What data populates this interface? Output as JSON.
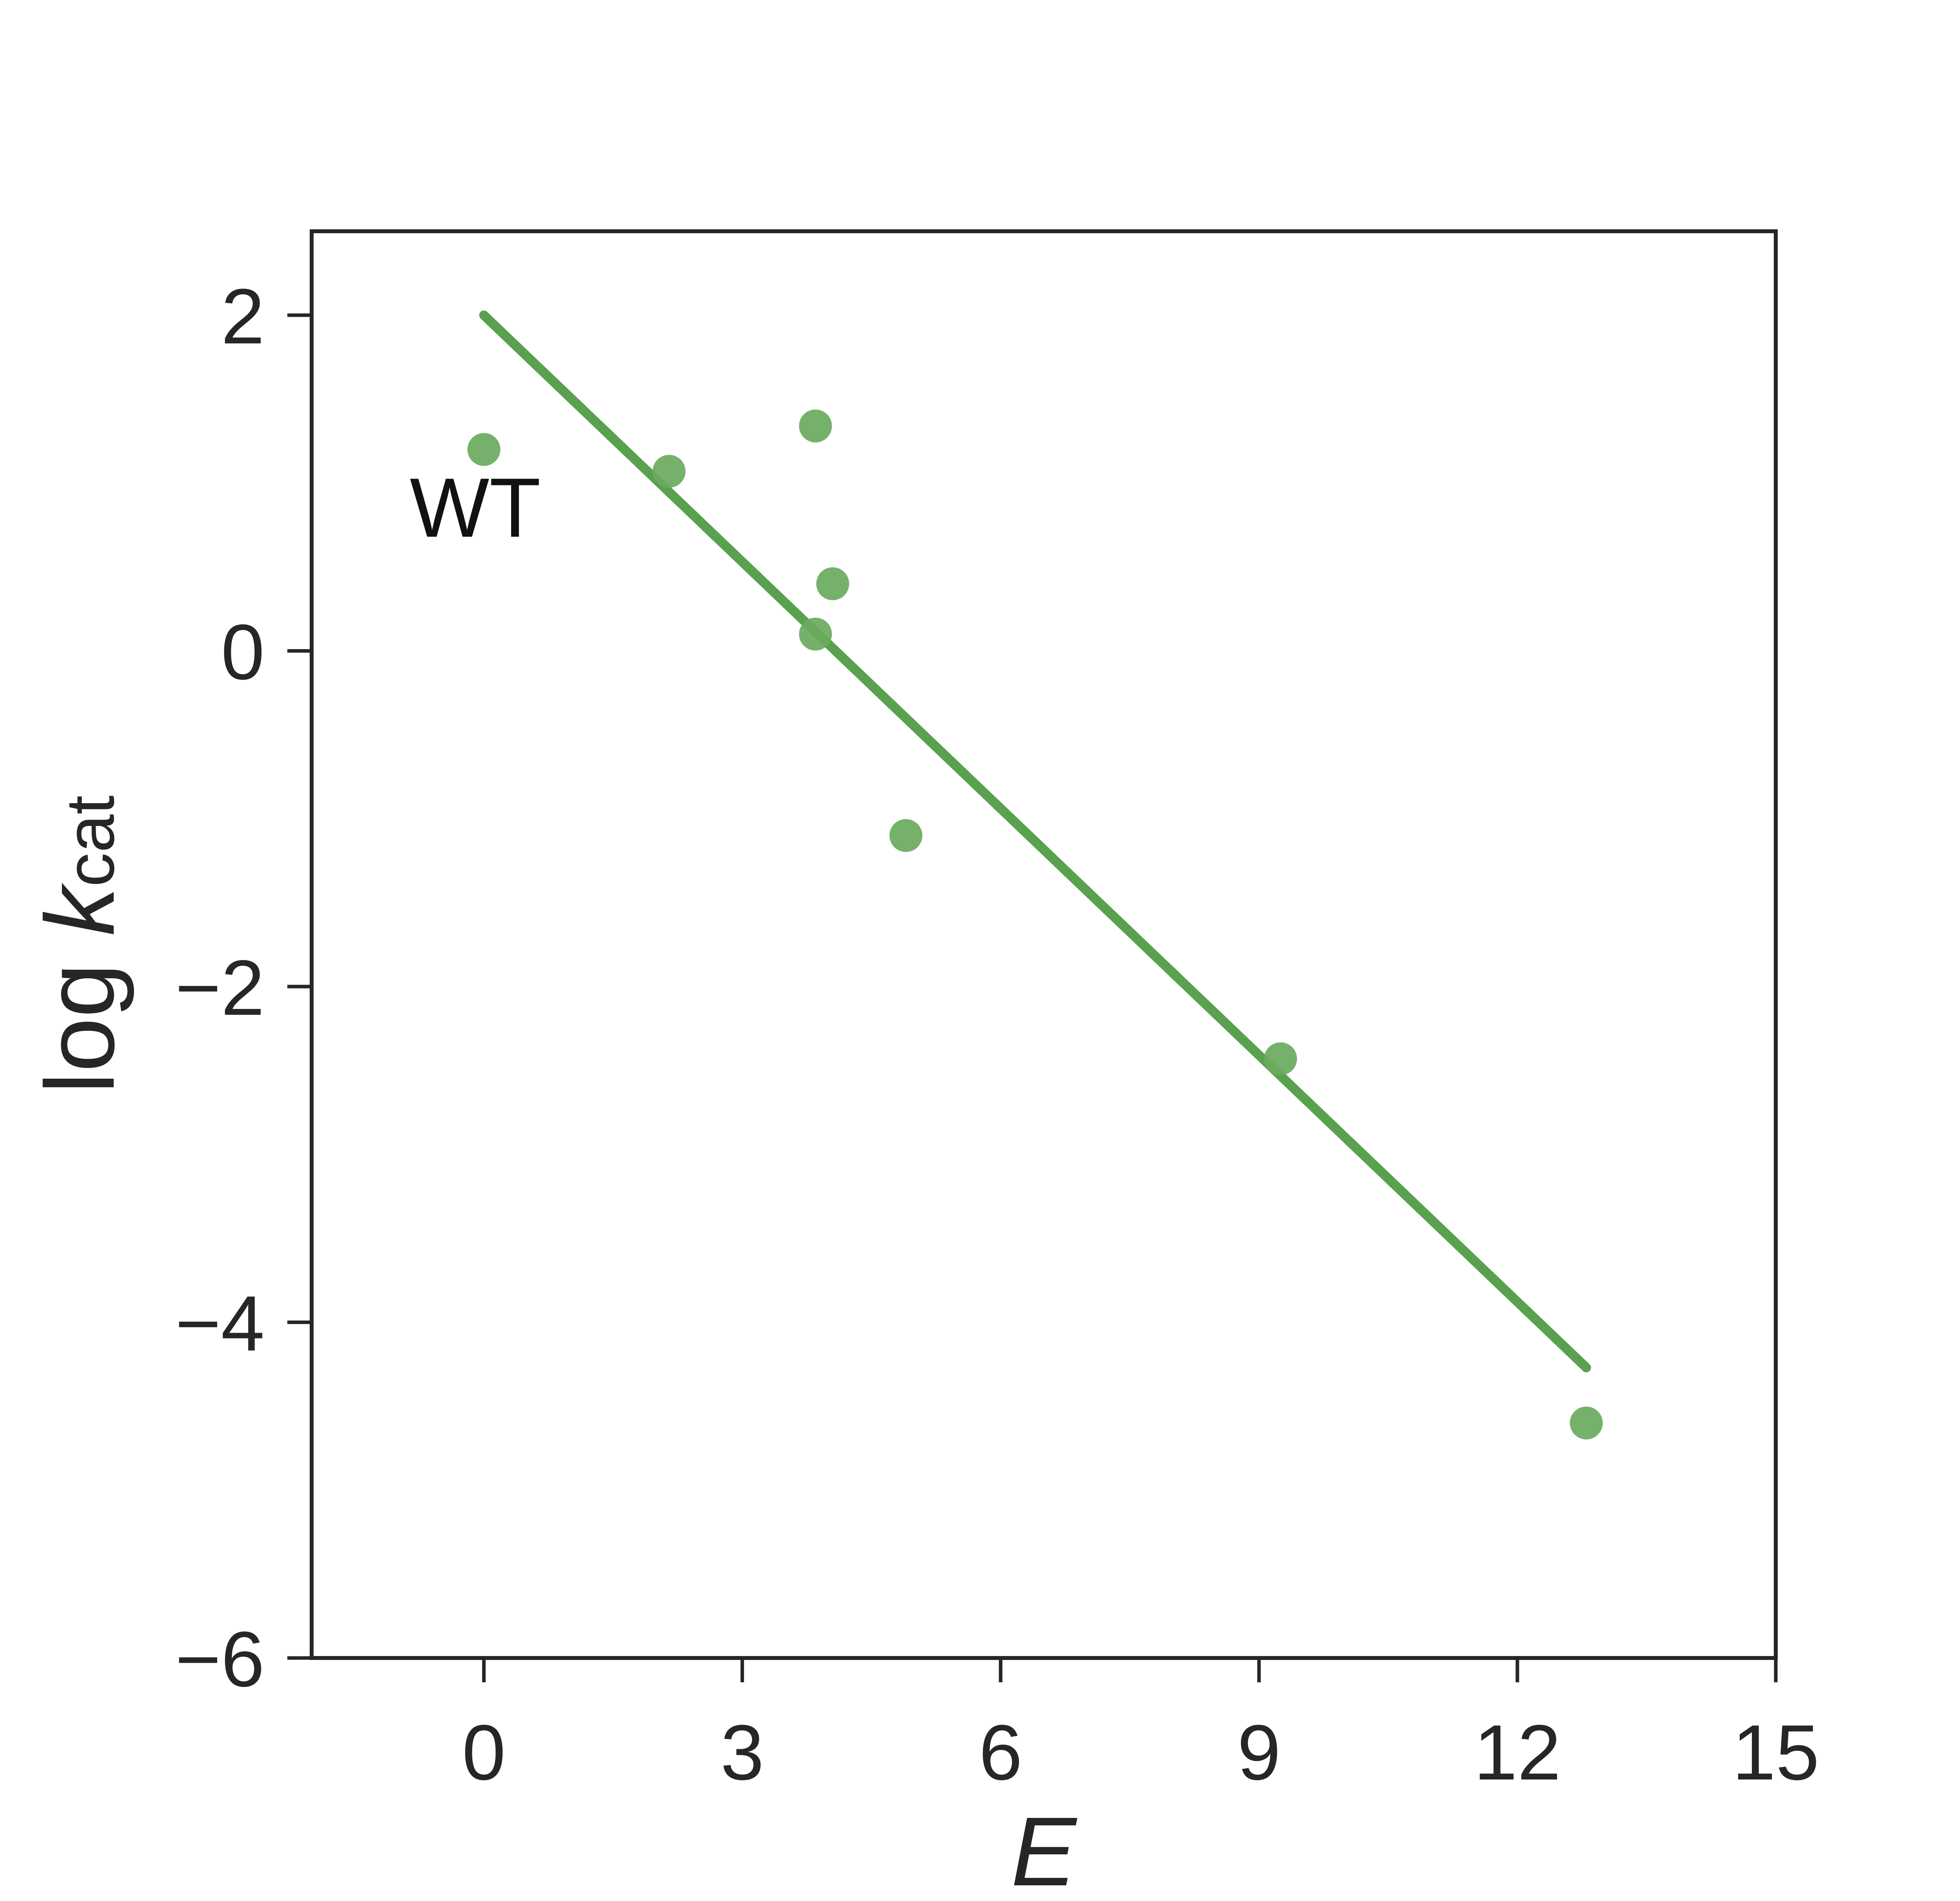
{
  "chart_data": {
    "type": "scatter",
    "title": "",
    "xlabel": "E",
    "ylabel_main": "log ",
    "ylabel_italic": "k",
    "ylabel_sub": "cat",
    "xlim": [
      -2,
      15
    ],
    "ylim": [
      -6,
      2.5
    ],
    "xticks": [
      0,
      3,
      6,
      9,
      12,
      15
    ],
    "yticks": [
      2,
      0,
      -2,
      -4,
      -6
    ],
    "xtick_labels": [
      "0",
      "3",
      "6",
      "9",
      "12",
      "15"
    ],
    "ytick_labels": [
      "2",
      "0",
      "−2",
      "−4",
      "−6"
    ],
    "grid": false,
    "color": "#6aaa5e",
    "line_color": "#59a14f",
    "points": [
      {
        "x": 0.0,
        "y": 1.2
      },
      {
        "x": 2.15,
        "y": 1.07
      },
      {
        "x": 3.85,
        "y": 1.34
      },
      {
        "x": 3.85,
        "y": 0.1
      },
      {
        "x": 4.05,
        "y": 0.4
      },
      {
        "x": 4.9,
        "y": -1.1
      },
      {
        "x": 9.25,
        "y": -2.43
      },
      {
        "x": 12.8,
        "y": -4.6
      }
    ],
    "fit_line": {
      "x": [
        0.0,
        12.8
      ],
      "y": [
        2.0,
        -4.27
      ]
    },
    "annotations": [
      {
        "text": "WT",
        "x": -0.1,
        "y": 0.68
      }
    ]
  }
}
